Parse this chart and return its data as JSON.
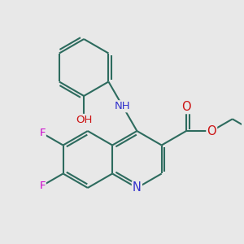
{
  "background_color": "#e8e8e8",
  "bond_color": "#2d6b5e",
  "bond_width": 1.5,
  "atom_colors": {
    "N": "#3333cc",
    "O": "#cc1111",
    "F": "#cc00cc",
    "C": "#2d6b5e"
  },
  "font_size": 9.5,
  "figsize": [
    3.0,
    3.0
  ],
  "dpi": 100
}
